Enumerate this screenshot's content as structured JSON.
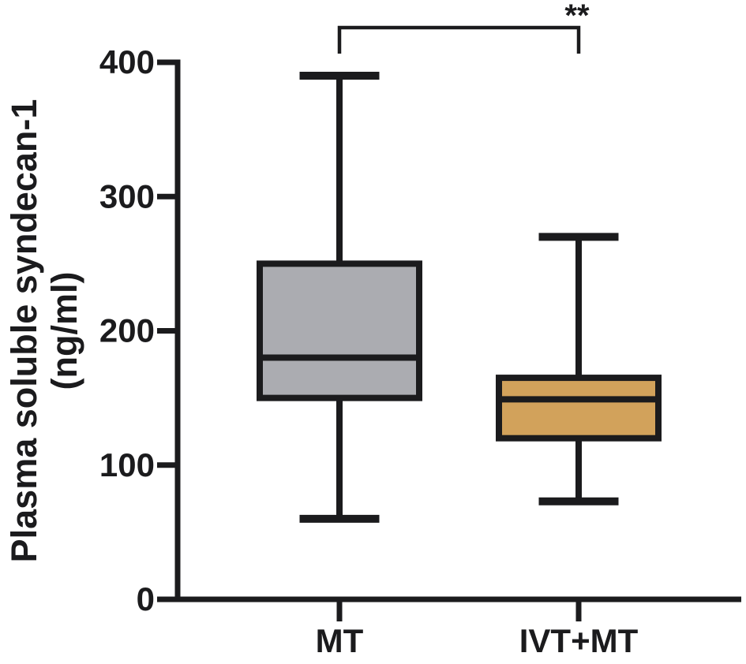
{
  "figure": {
    "background": "#ffffff",
    "line_color": "#1b1b1d",
    "text_color": "#1b1b1d"
  },
  "chart_data": {
    "type": "box",
    "title": "",
    "ylabel_lines": [
      "Plasma soluble syndecan-1",
      "(ng/ml)"
    ],
    "xlabel": "",
    "ylim": [
      0,
      400
    ],
    "yticks": [
      0,
      100,
      200,
      300,
      400
    ],
    "categories": [
      "MT",
      "IVT+MT"
    ],
    "series": [
      {
        "name": "MT",
        "min": 60,
        "q1": 150,
        "median": 180,
        "q3": 250,
        "max": 390,
        "fill_color": "#abacb1"
      },
      {
        "name": "IVT+MT",
        "min": 73,
        "q1": 120,
        "median": 149,
        "q3": 165,
        "max": 270,
        "fill_color": "#d2a25b"
      }
    ],
    "significance": {
      "label": "**",
      "between": [
        "MT",
        "IVT+MT"
      ]
    },
    "legend": null,
    "grid": false
  }
}
